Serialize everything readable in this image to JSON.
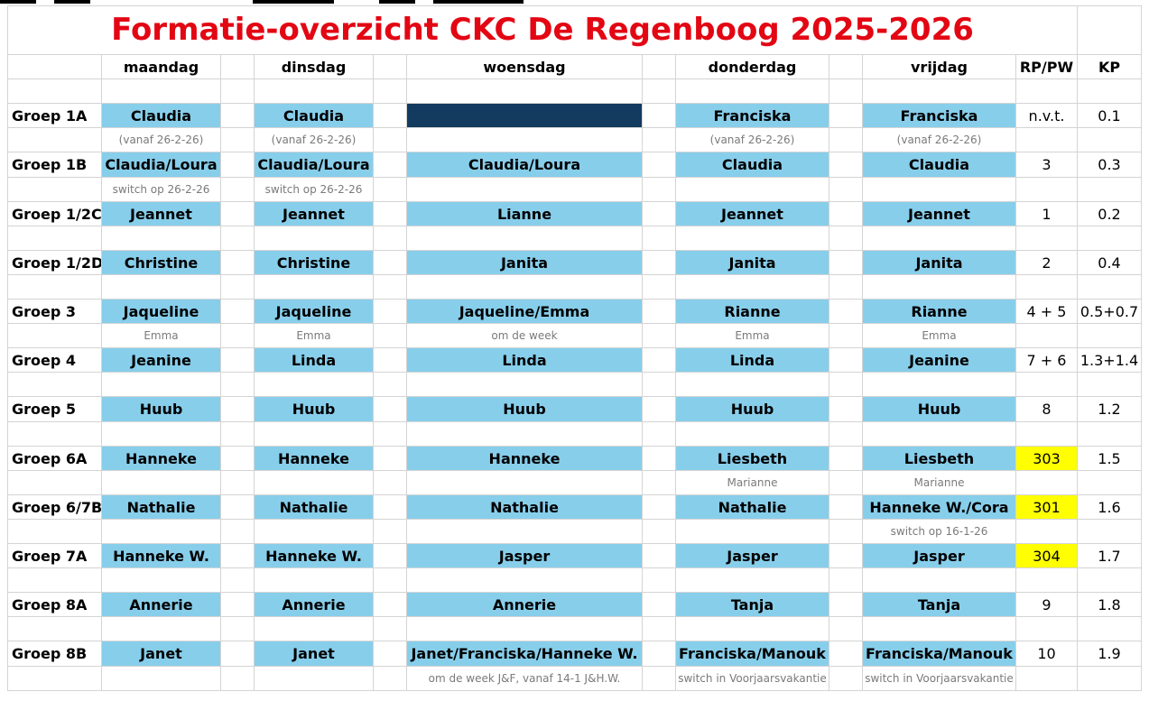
{
  "title": "Formatie-overzicht CKC De Regenboog 2025-2026",
  "days": [
    "maandag",
    "dinsdag",
    "woensdag",
    "donderdag",
    "vrijdag"
  ],
  "col_rp": "RP/PW",
  "col_kp": "KP",
  "groups": [
    {
      "label": "Groep 1A",
      "names": [
        "Claudia",
        "Claudia",
        "",
        "Franciska",
        "Franciska"
      ],
      "rp": "n.v.t.",
      "kp": "0.1",
      "notes": [
        "(vanaf 26-2-26)",
        "(vanaf 26-2-26)",
        "",
        "(vanaf 26-2-26)",
        "(vanaf 26-2-26)"
      ]
    },
    {
      "label": "Groep 1B",
      "names": [
        "Claudia/Loura",
        "Claudia/Loura",
        "Claudia/Loura",
        "Claudia",
        "Claudia"
      ],
      "rp": "3",
      "kp": "0.3",
      "notes": [
        "switch op 26-2-26",
        "switch op 26-2-26",
        "",
        "",
        ""
      ]
    },
    {
      "label": "Groep 1/2C",
      "names": [
        "Jeannet",
        "Jeannet",
        "Lianne",
        "Jeannet",
        "Jeannet"
      ],
      "rp": "1",
      "kp": "0.2",
      "notes": [
        "",
        "",
        "",
        "",
        ""
      ]
    },
    {
      "label": "Groep 1/2D",
      "names": [
        "Christine",
        "Christine",
        "Janita",
        "Janita",
        "Janita"
      ],
      "rp": "2",
      "kp": "0.4",
      "notes": [
        "",
        "",
        "",
        "",
        ""
      ]
    },
    {
      "label": "Groep 3",
      "names": [
        "Jaqueline",
        "Jaqueline",
        "Jaqueline/Emma",
        "Rianne",
        "Rianne"
      ],
      "rp": "4 + 5",
      "kp": "0.5+0.7",
      "notes": [
        "Emma",
        "Emma",
        "om de week",
        "Emma",
        "Emma"
      ]
    },
    {
      "label": "Groep 4",
      "names": [
        "Jeanine",
        "Linda",
        "Linda",
        "Linda",
        "Jeanine"
      ],
      "rp": "7 + 6",
      "kp": "1.3+1.4",
      "notes": [
        "",
        "",
        "",
        "",
        ""
      ]
    },
    {
      "label": "Groep 5",
      "names": [
        "Huub",
        "Huub",
        "Huub",
        "Huub",
        "Huub"
      ],
      "rp": "8",
      "kp": "1.2",
      "notes": [
        "",
        "",
        "",
        "",
        ""
      ]
    },
    {
      "label": "Groep 6A",
      "names": [
        "Hanneke",
        "Hanneke",
        "Hanneke",
        "Liesbeth",
        "Liesbeth"
      ],
      "rp": "303",
      "kp": "1.5",
      "notes": [
        "",
        "",
        "",
        "Marianne",
        "Marianne"
      ]
    },
    {
      "label": "Groep 6/7B",
      "names": [
        "Nathalie",
        "Nathalie",
        "Nathalie",
        "Nathalie",
        "Hanneke W./Cora"
      ],
      "rp": "301",
      "kp": "1.6",
      "notes": [
        "",
        "",
        "",
        "",
        "switch op 16-1-26"
      ]
    },
    {
      "label": "Groep 7A",
      "names": [
        "Hanneke W.",
        "Hanneke W.",
        "Jasper",
        "Jasper",
        "Jasper"
      ],
      "rp": "304",
      "kp": "1.7",
      "notes": [
        "",
        "",
        "",
        "",
        ""
      ]
    },
    {
      "label": "Groep 8A",
      "names": [
        "Annerie",
        "Annerie",
        "Annerie",
        "Tanja",
        "Tanja"
      ],
      "rp": "9",
      "kp": "1.8",
      "notes": [
        "",
        "",
        "",
        "",
        ""
      ]
    },
    {
      "label": "Groep 8B",
      "names": [
        "Janet",
        "Janet",
        "Janet/Franciska/Hanneke W.",
        "Franciska/Manouk",
        "Franciska/Manouk"
      ],
      "rp": "10",
      "kp": "1.9",
      "notes": [
        "",
        "",
        "om de week J&F, vanaf 14-1 J&H.W.",
        "switch in Voorjaarsvakantie",
        "switch in Voorjaarsvakantie"
      ]
    }
  ],
  "highlight_color": "#ffff00",
  "name_cell_color": "#87ceeb",
  "closed_cell_color": "#133a5f",
  "title_color": "#e30613"
}
